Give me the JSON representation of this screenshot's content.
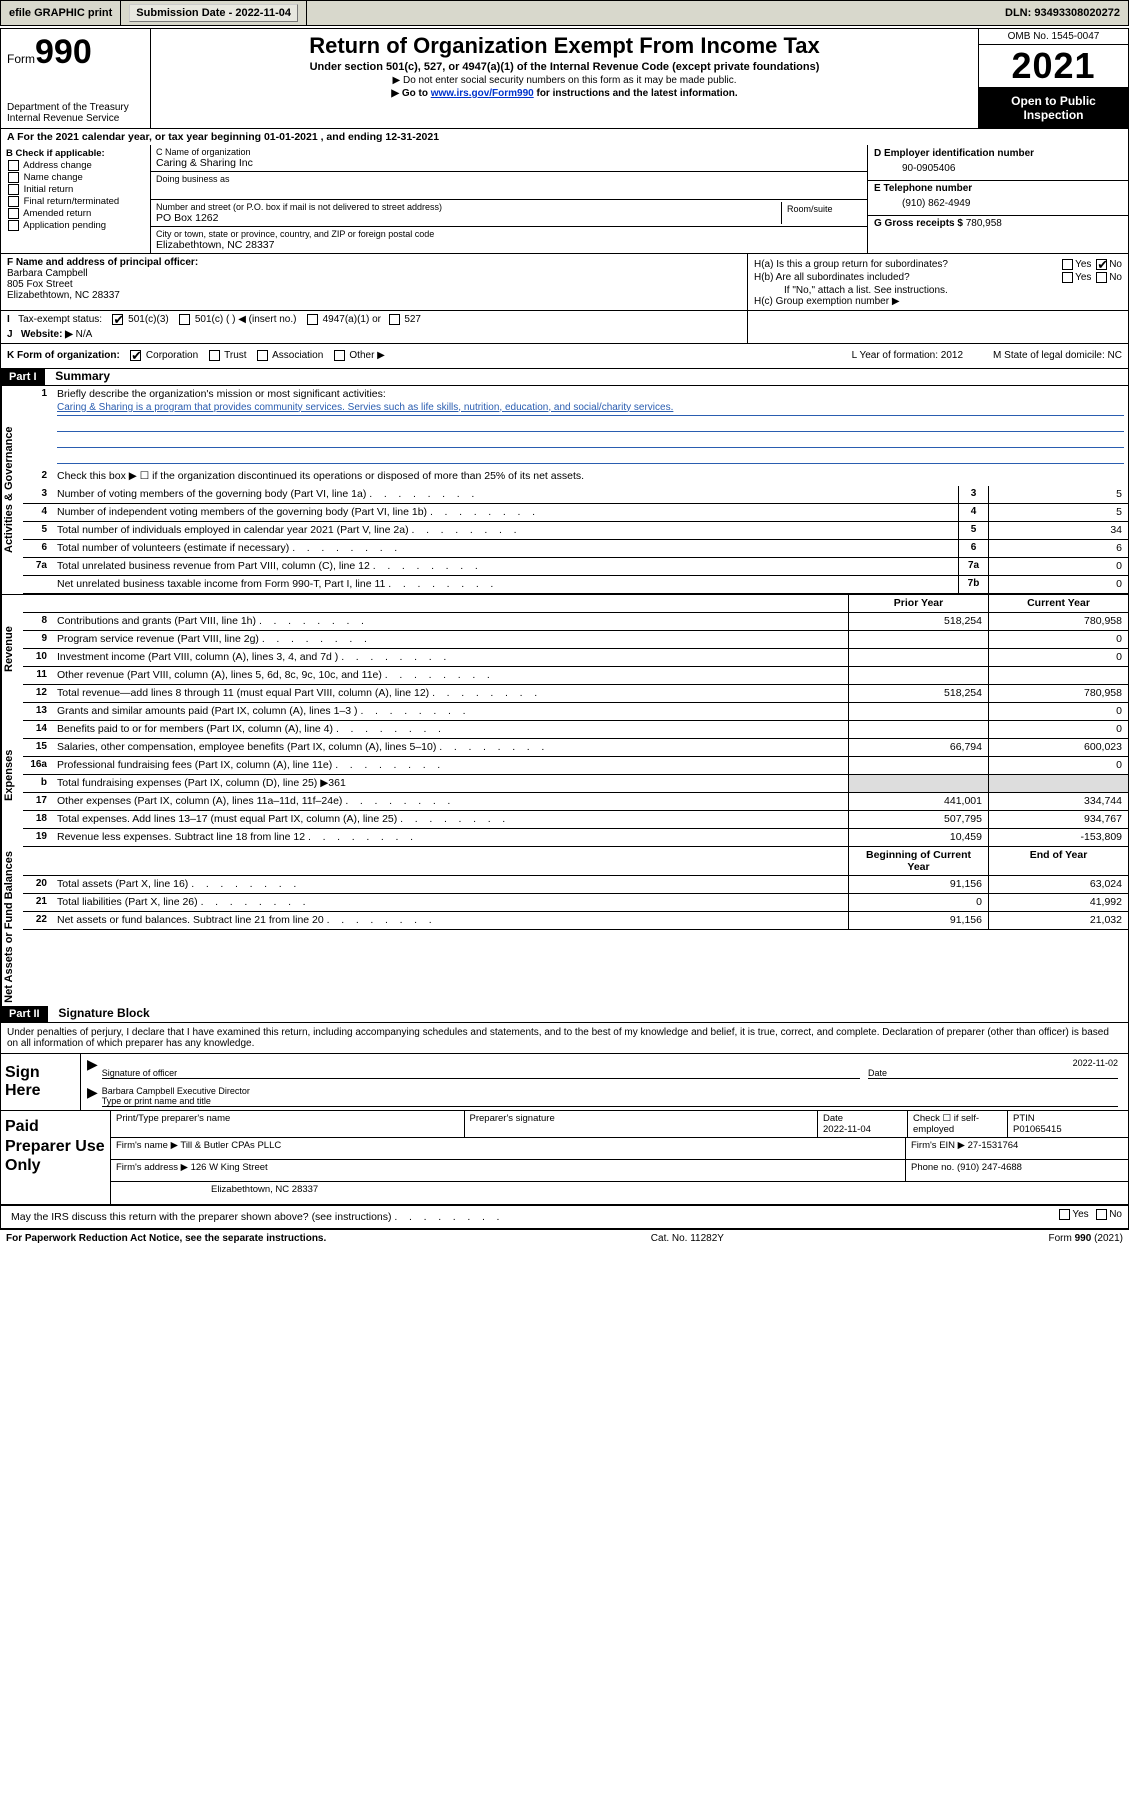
{
  "topbar": {
    "efile": "efile GRAPHIC print",
    "sub_label": "Submission Date - ",
    "sub_date": "2022-11-04",
    "dln": "DLN: 93493308020272"
  },
  "header": {
    "form_label": "Form",
    "form_num": "990",
    "dept": "Department of the Treasury",
    "irs": "Internal Revenue Service",
    "title": "Return of Organization Exempt From Income Tax",
    "sub1": "Under section 501(c), 527, or 4947(a)(1) of the Internal Revenue Code (except private foundations)",
    "note1": "▶ Do not enter social security numbers on this form as it may be made public.",
    "note2_pre": "▶ Go to ",
    "note2_link": "www.irs.gov/Form990",
    "note2_post": " for instructions and the latest information.",
    "omb": "OMB No. 1545-0047",
    "year": "2021",
    "inspect": "Open to Public Inspection"
  },
  "A": {
    "text": "For the 2021 calendar year, or tax year beginning 01-01-2021   , and ending 12-31-2021"
  },
  "B": {
    "hdr": "B Check if applicable:",
    "opts": [
      "Address change",
      "Name change",
      "Initial return",
      "Final return/terminated",
      "Amended return",
      "Application pending"
    ]
  },
  "C": {
    "name_lbl": "C Name of organization",
    "name": "Caring & Sharing Inc",
    "dba_lbl": "Doing business as",
    "addr_lbl": "Number and street (or P.O. box if mail is not delivered to street address)",
    "room_lbl": "Room/suite",
    "addr": "PO Box 1262",
    "city_lbl": "City or town, state or province, country, and ZIP or foreign postal code",
    "city": "Elizabethtown, NC  28337"
  },
  "D": {
    "lbl": "D Employer identification number",
    "val": "90-0905406",
    "E_lbl": "E Telephone number",
    "E_val": "(910) 862-4949",
    "G_lbl": "G Gross receipts $ ",
    "G_val": "780,958"
  },
  "F": {
    "lbl": "F  Name and address of principal officer:",
    "name": "Barbara Campbell",
    "addr1": "805 Fox Street",
    "addr2": "Elizabethtown, NC  28337"
  },
  "H": {
    "a": "H(a)  Is this a group return for subordinates?",
    "b": "H(b)  Are all subordinates included?",
    "b_note": "If \"No,\" attach a list. See instructions.",
    "c": "H(c)  Group exemption number ▶"
  },
  "I": {
    "lbl": "Tax-exempt status:",
    "opts": [
      "501(c)(3)",
      "501(c) (  ) ◀ (insert no.)",
      "4947(a)(1) or",
      "527"
    ]
  },
  "J": {
    "lbl": "Website: ▶",
    "val": "N/A"
  },
  "K": {
    "lbl": "K Form of organization:",
    "opts": [
      "Corporation",
      "Trust",
      "Association",
      "Other ▶"
    ],
    "L": "L Year of formation: 2012",
    "M": "M State of legal domicile: NC"
  },
  "parts": {
    "p1": "Part I",
    "p1_title": "Summary",
    "p2": "Part II",
    "p2_title": "Signature Block"
  },
  "vtabs": {
    "gov": "Activities & Governance",
    "rev": "Revenue",
    "exp": "Expenses",
    "net": "Net Assets or Fund Balances"
  },
  "summary": {
    "l1": "Briefly describe the organization's mission or most significant activities:",
    "mission": "Caring & Sharing is a program that provides community services. Servies such as life skills, nutrition, education, and social/charity services.",
    "l2": "Check this box ▶ ☐  if the organization discontinued its operations or disposed of more than 25% of its net assets.",
    "rows_gov": [
      {
        "n": "3",
        "d": "Number of voting members of the governing body (Part VI, line 1a)",
        "box": "3",
        "v": "5"
      },
      {
        "n": "4",
        "d": "Number of independent voting members of the governing body (Part VI, line 1b)",
        "box": "4",
        "v": "5"
      },
      {
        "n": "5",
        "d": "Total number of individuals employed in calendar year 2021 (Part V, line 2a)",
        "box": "5",
        "v": "34"
      },
      {
        "n": "6",
        "d": "Total number of volunteers (estimate if necessary)",
        "box": "6",
        "v": "6"
      },
      {
        "n": "7a",
        "d": "Total unrelated business revenue from Part VIII, column (C), line 12",
        "box": "7a",
        "v": "0"
      },
      {
        "n": "",
        "d": "Net unrelated business taxable income from Form 990-T, Part I, line 11",
        "box": "7b",
        "v": "0"
      }
    ],
    "col_hdr": {
      "prior": "Prior Year",
      "current": "Current Year",
      "beg": "Beginning of Current Year",
      "end": "End of Year"
    },
    "rows_rev": [
      {
        "n": "8",
        "d": "Contributions and grants (Part VIII, line 1h)",
        "p": "518,254",
        "c": "780,958"
      },
      {
        "n": "9",
        "d": "Program service revenue (Part VIII, line 2g)",
        "p": "",
        "c": "0"
      },
      {
        "n": "10",
        "d": "Investment income (Part VIII, column (A), lines 3, 4, and 7d )",
        "p": "",
        "c": "0"
      },
      {
        "n": "11",
        "d": "Other revenue (Part VIII, column (A), lines 5, 6d, 8c, 9c, 10c, and 11e)",
        "p": "",
        "c": ""
      },
      {
        "n": "12",
        "d": "Total revenue—add lines 8 through 11 (must equal Part VIII, column (A), line 12)",
        "p": "518,254",
        "c": "780,958"
      }
    ],
    "rows_exp": [
      {
        "n": "13",
        "d": "Grants and similar amounts paid (Part IX, column (A), lines 1–3 )",
        "p": "",
        "c": "0"
      },
      {
        "n": "14",
        "d": "Benefits paid to or for members (Part IX, column (A), line 4)",
        "p": "",
        "c": "0"
      },
      {
        "n": "15",
        "d": "Salaries, other compensation, employee benefits (Part IX, column (A), lines 5–10)",
        "p": "66,794",
        "c": "600,023"
      },
      {
        "n": "16a",
        "d": "Professional fundraising fees (Part IX, column (A), line 11e)",
        "p": "",
        "c": "0"
      },
      {
        "n": "b",
        "d": "Total fundraising expenses (Part IX, column (D), line 25) ▶361",
        "p": null,
        "c": null
      },
      {
        "n": "17",
        "d": "Other expenses (Part IX, column (A), lines 11a–11d, 11f–24e)",
        "p": "441,001",
        "c": "334,744"
      },
      {
        "n": "18",
        "d": "Total expenses. Add lines 13–17 (must equal Part IX, column (A), line 25)",
        "p": "507,795",
        "c": "934,767"
      },
      {
        "n": "19",
        "d": "Revenue less expenses. Subtract line 18 from line 12",
        "p": "10,459",
        "c": "-153,809"
      }
    ],
    "rows_net": [
      {
        "n": "20",
        "d": "Total assets (Part X, line 16)",
        "p": "91,156",
        "c": "63,024"
      },
      {
        "n": "21",
        "d": "Total liabilities (Part X, line 26)",
        "p": "0",
        "c": "41,992"
      },
      {
        "n": "22",
        "d": "Net assets or fund balances. Subtract line 21 from line 20",
        "p": "91,156",
        "c": "21,032"
      }
    ]
  },
  "sig": {
    "decl": "Under penalties of perjury, I declare that I have examined this return, including accompanying schedules and statements, and to the best of my knowledge and belief, it is true, correct, and complete. Declaration of preparer (other than officer) is based on all information of which preparer has any knowledge.",
    "sign_here": "Sign Here",
    "sig_lbl": "Signature of officer",
    "date_lbl": "Date",
    "date_val": "2022-11-02",
    "name": "Barbara Campbell Executive Director",
    "name_lbl": "Type or print name and title"
  },
  "prep": {
    "lbl": "Paid Preparer Use Only",
    "h1": "Print/Type preparer's name",
    "h2": "Preparer's signature",
    "h3": "Date",
    "h3v": "2022-11-04",
    "h4": "Check ☐ if self-employed",
    "h5": "PTIN",
    "h5v": "P01065415",
    "firm_lbl": "Firm's name    ▶",
    "firm": "Till & Butler CPAs PLLC",
    "ein_lbl": "Firm's EIN ▶",
    "ein": "27-1531764",
    "addr_lbl": "Firm's address ▶",
    "addr1": "126 W King Street",
    "addr2": "Elizabethtown, NC  28337",
    "phone_lbl": "Phone no. ",
    "phone": "(910) 247-4688",
    "discuss": "May the IRS discuss this return with the preparer shown above? (see instructions)"
  },
  "footer": {
    "left": "For Paperwork Reduction Act Notice, see the separate instructions.",
    "mid": "Cat. No. 11282Y",
    "right": "Form 990 (2021)"
  }
}
